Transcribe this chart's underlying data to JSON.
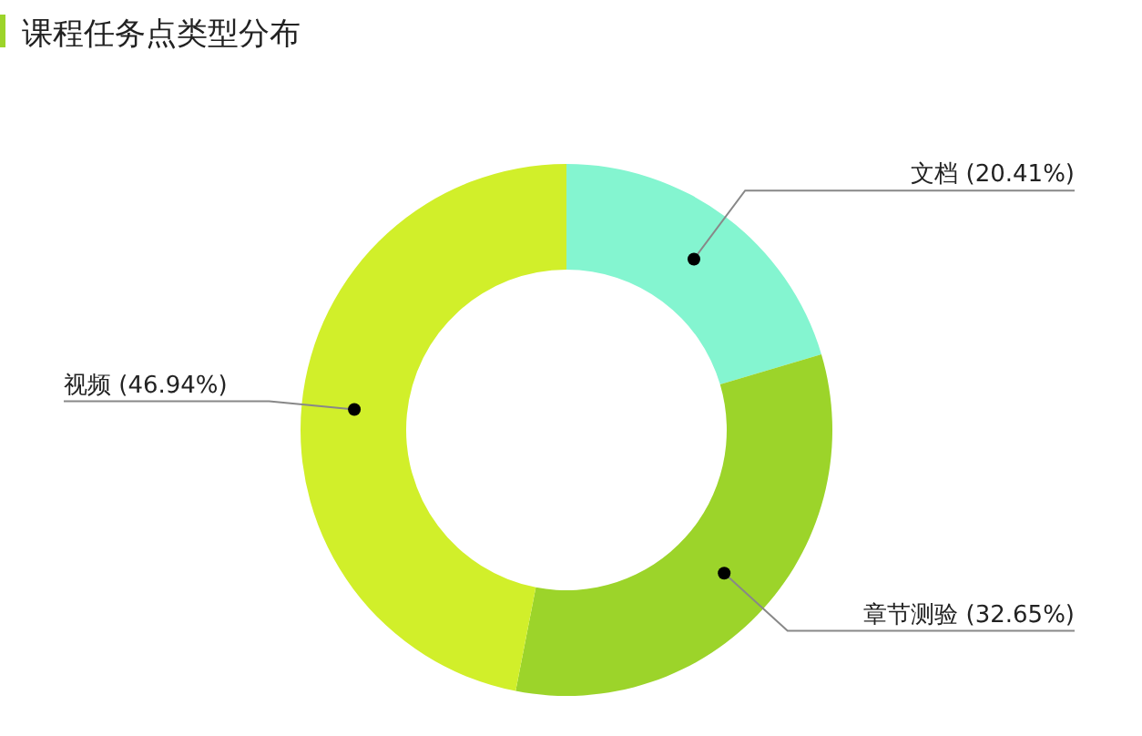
{
  "chart_data": {
    "type": "donut",
    "title": "课程任务点类型分布",
    "categories": [
      "文档",
      "章节测验",
      "视频"
    ],
    "values": [
      20.41,
      32.65,
      46.94
    ],
    "colors": [
      "#84f5d0",
      "#9cd42a",
      "#d1ef2a"
    ],
    "value_labels": [
      "(20.41%)",
      "(32.65%)",
      "(46.94%)"
    ]
  }
}
